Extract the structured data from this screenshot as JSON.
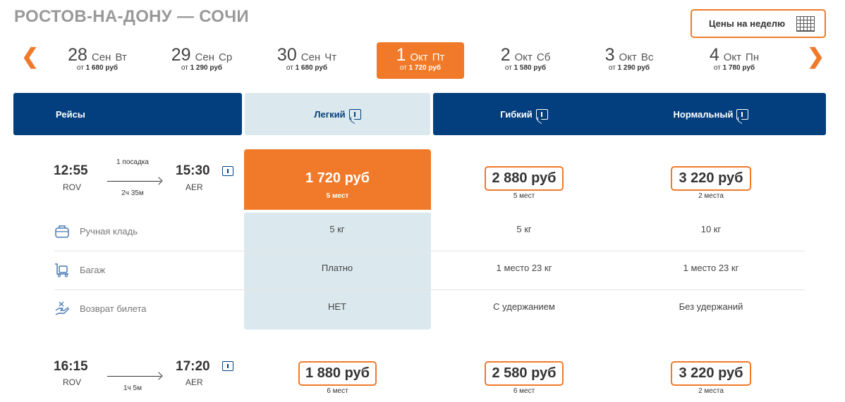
{
  "route": {
    "title": "РОСТОВ-НА-ДОНУ — СОЧИ"
  },
  "week_button": {
    "label": "Цены на неделю",
    "icon": "calendar-grid-icon"
  },
  "nav": {
    "prev": "❮",
    "next": "❯"
  },
  "dates": [
    {
      "day": "28",
      "month": "Сен",
      "weekday": "Вт",
      "prefix": "от",
      "price": "1 680 руб",
      "active": false
    },
    {
      "day": "29",
      "month": "Сен",
      "weekday": "Ср",
      "prefix": "от",
      "price": "1 290 руб",
      "active": false
    },
    {
      "day": "30",
      "month": "Сен",
      "weekday": "Чт",
      "prefix": "от",
      "price": "1 680 руб",
      "active": false
    },
    {
      "day": "1",
      "month": "Окт",
      "weekday": "Пт",
      "prefix": "от",
      "price": "1 720 руб",
      "active": true
    },
    {
      "day": "2",
      "month": "Окт",
      "weekday": "Сб",
      "prefix": "от",
      "price": "1 580 руб",
      "active": false
    },
    {
      "day": "3",
      "month": "Окт",
      "weekday": "Вс",
      "prefix": "от",
      "price": "1 290 руб",
      "active": false
    },
    {
      "day": "4",
      "month": "Окт",
      "weekday": "Пн",
      "prefix": "от",
      "price": "1 780 руб",
      "active": false
    }
  ],
  "header": {
    "flights": "Рейсы",
    "light": "Легкий",
    "flexible": "Гибкий",
    "normal": "Нормальный"
  },
  "flights": [
    {
      "dep_time": "12:55",
      "dep_code": "ROV",
      "arr_time": "15:30",
      "arr_code": "AER",
      "stops": "1 посадка",
      "duration": "2ч 35м",
      "light": {
        "price": "1 720 руб",
        "seats": "5 мест"
      },
      "flexible": {
        "price": "2 880 руб",
        "seats": "5 мест"
      },
      "normal": {
        "price": "3 220 руб",
        "seats": "2 места"
      }
    },
    {
      "dep_time": "16:15",
      "dep_code": "ROV",
      "arr_time": "17:20",
      "arr_code": "AER",
      "stops": "",
      "duration": "1ч 5м",
      "light": {
        "price": "1 880 руб",
        "seats": "6 мест"
      },
      "flexible": {
        "price": "2 580 руб",
        "seats": "6 мест"
      },
      "normal": {
        "price": "3 220 руб",
        "seats": "2 места"
      }
    }
  ],
  "features": [
    {
      "label": "Ручная кладь",
      "icon": "hand-luggage-icon",
      "light": "5 кг",
      "flexible": "5 кг",
      "normal": "10 кг"
    },
    {
      "label": "Багаж",
      "icon": "luggage-cart-icon",
      "light": "Платно",
      "flexible": "1 место 23 кг",
      "normal": "1 место 23 кг"
    },
    {
      "label": "Возврат билета",
      "icon": "refund-hand-icon",
      "light": "НЕТ",
      "flexible": "С удержанием",
      "normal": "Без удержаний"
    }
  ],
  "colors": {
    "accent": "#f07a2a",
    "navy": "#033f7e",
    "light_panel": "#dbe9ef"
  }
}
